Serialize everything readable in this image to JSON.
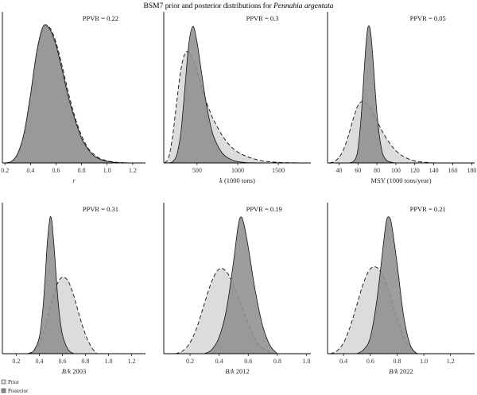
{
  "figure": {
    "title_prefix": "BSM7 prior and posterior distributions for ",
    "title_species": "Pennahia argentata",
    "legend": [
      {
        "label": "Prior",
        "color": "#dcdcdc"
      },
      {
        "label": "Posterior",
        "color": "#8c8c8c"
      }
    ]
  },
  "colors": {
    "prior_fill": "#dcdcdc",
    "posterior_fill": "#8f8f8f",
    "stroke": "#111111"
  },
  "chart_data": [
    {
      "type": "area",
      "xlabel_italic": "r",
      "xlabel_rest": "",
      "annotation": "PPVR = 0.22",
      "xlim": [
        0.18,
        1.3
      ],
      "xticks": [
        0.2,
        0.4,
        0.6,
        0.8,
        1.0,
        1.2
      ],
      "xtick_labels": [
        "0.2",
        "0.4",
        "0.6",
        "0.8",
        "1.0",
        "1.2"
      ],
      "series": [
        {
          "name": "Prior",
          "x": [
            0.2,
            0.25,
            0.3,
            0.35,
            0.4,
            0.45,
            0.5,
            0.55,
            0.6,
            0.65,
            0.7,
            0.75,
            0.8,
            0.85,
            0.9,
            0.95,
            1.0,
            1.05,
            1.1,
            1.15,
            1.2
          ],
          "density": [
            0.0,
            0.01,
            0.06,
            0.2,
            0.48,
            0.8,
            0.98,
            0.99,
            0.88,
            0.7,
            0.5,
            0.33,
            0.2,
            0.11,
            0.06,
            0.03,
            0.015,
            0.007,
            0.003,
            0.001,
            0.0
          ]
        },
        {
          "name": "Posterior",
          "x": [
            0.2,
            0.25,
            0.3,
            0.35,
            0.4,
            0.45,
            0.5,
            0.55,
            0.6,
            0.65,
            0.7,
            0.75,
            0.8,
            0.85,
            0.9,
            0.95,
            1.0,
            1.05,
            1.1,
            1.15,
            1.2
          ],
          "density": [
            0.0,
            0.01,
            0.07,
            0.22,
            0.5,
            0.82,
            1.0,
            0.98,
            0.86,
            0.67,
            0.47,
            0.31,
            0.18,
            0.1,
            0.05,
            0.025,
            0.012,
            0.005,
            0.002,
            0.001,
            0.0
          ]
        }
      ]
    },
    {
      "type": "area",
      "xlabel_italic": "k",
      "xlabel_rest": " (1000 tons)",
      "annotation": "PPVR = 0.3",
      "xlim": [
        90,
        1900
      ],
      "xticks": [
        500,
        1000,
        1500
      ],
      "xtick_labels": [
        "500",
        "1000",
        "1500"
      ],
      "series": [
        {
          "name": "Prior",
          "x": [
            100,
            150,
            200,
            250,
            300,
            350,
            400,
            450,
            500,
            550,
            600,
            650,
            700,
            800,
            900,
            1000,
            1100,
            1200,
            1300,
            1400,
            1500,
            1600,
            1700,
            1800
          ],
          "density": [
            0.0,
            0.04,
            0.2,
            0.45,
            0.68,
            0.8,
            0.81,
            0.76,
            0.67,
            0.57,
            0.47,
            0.39,
            0.32,
            0.21,
            0.13,
            0.08,
            0.05,
            0.03,
            0.015,
            0.008,
            0.004,
            0.002,
            0.001,
            0.0
          ]
        },
        {
          "name": "Posterior",
          "x": [
            100,
            150,
            200,
            250,
            300,
            350,
            400,
            450,
            500,
            550,
            600,
            650,
            700,
            800,
            900,
            1000,
            1100,
            1200,
            1300,
            1400,
            1500,
            1600,
            1700,
            1800
          ],
          "density": [
            0.0,
            0.0,
            0.01,
            0.06,
            0.22,
            0.55,
            0.88,
            1.0,
            0.88,
            0.68,
            0.48,
            0.32,
            0.2,
            0.08,
            0.03,
            0.01,
            0.003,
            0.001,
            0.0,
            0.0,
            0.0,
            0.0,
            0.0,
            0.0
          ]
        }
      ]
    },
    {
      "type": "area",
      "xlabel_italic": "",
      "xlabel_rest": "MSY (1000 tons/year)",
      "annotation": "PPVR = 0.05",
      "xlim": [
        28,
        183
      ],
      "xticks": [
        40,
        60,
        80,
        100,
        120,
        140,
        160,
        180
      ],
      "xtick_labels": [
        "40",
        "60",
        "80",
        "100",
        "120",
        "140",
        "160",
        "180"
      ],
      "series": [
        {
          "name": "Prior",
          "x": [
            30,
            35,
            40,
            45,
            50,
            55,
            60,
            65,
            70,
            75,
            80,
            85,
            90,
            95,
            100,
            105,
            110,
            115,
            120,
            125,
            130,
            135,
            140,
            150
          ],
          "density": [
            0.0,
            0.01,
            0.04,
            0.1,
            0.2,
            0.32,
            0.42,
            0.45,
            0.43,
            0.38,
            0.31,
            0.24,
            0.18,
            0.13,
            0.09,
            0.06,
            0.04,
            0.025,
            0.015,
            0.009,
            0.005,
            0.003,
            0.001,
            0.0
          ]
        },
        {
          "name": "Posterior",
          "x": [
            30,
            40,
            50,
            55,
            58,
            60,
            63,
            65,
            68,
            70,
            72,
            74,
            76,
            78,
            80,
            83,
            86,
            90,
            95,
            100,
            110
          ],
          "density": [
            0.0,
            0.0,
            0.0,
            0.01,
            0.04,
            0.1,
            0.3,
            0.5,
            0.82,
            0.97,
            1.0,
            0.92,
            0.75,
            0.55,
            0.37,
            0.18,
            0.07,
            0.02,
            0.005,
            0.0,
            0.0
          ]
        }
      ]
    },
    {
      "type": "area",
      "xlabel_italic": "B/k",
      "xlabel_rest": " 2003",
      "annotation": "PPVR = 0.31",
      "xlim": [
        0.08,
        1.32
      ],
      "xticks": [
        0.2,
        0.4,
        0.6,
        0.8,
        1.0,
        1.2
      ],
      "xtick_labels": [
        "0.2",
        "0.4",
        "0.6",
        "0.8",
        "1.0",
        "1.2"
      ],
      "series": [
        {
          "name": "Prior",
          "x": [
            0.3,
            0.35,
            0.4,
            0.45,
            0.5,
            0.55,
            0.6,
            0.65,
            0.7,
            0.75,
            0.8,
            0.85,
            0.9
          ],
          "density": [
            0.0,
            0.02,
            0.08,
            0.2,
            0.36,
            0.5,
            0.56,
            0.53,
            0.42,
            0.27,
            0.14,
            0.05,
            0.0
          ]
        },
        {
          "name": "Posterior",
          "x": [
            0.3,
            0.35,
            0.4,
            0.43,
            0.45,
            0.47,
            0.49,
            0.5,
            0.51,
            0.53,
            0.55,
            0.57,
            0.6,
            0.65,
            0.7
          ],
          "density": [
            0.0,
            0.02,
            0.12,
            0.32,
            0.55,
            0.82,
            0.98,
            1.0,
            0.96,
            0.76,
            0.52,
            0.32,
            0.14,
            0.03,
            0.0
          ]
        }
      ]
    },
    {
      "type": "area",
      "xlabel_italic": "B/k",
      "xlabel_rest": " 2012",
      "annotation": "PPVR = 0.19",
      "xlim": [
        0.02,
        1.03
      ],
      "xticks": [
        0.2,
        0.4,
        0.6,
        0.8,
        1.0
      ],
      "xtick_labels": [
        "0.2",
        "0.4",
        "0.6",
        "0.8",
        "1.0"
      ],
      "series": [
        {
          "name": "Prior",
          "x": [
            0.1,
            0.15,
            0.2,
            0.25,
            0.3,
            0.35,
            0.4,
            0.45,
            0.5,
            0.55,
            0.6,
            0.65,
            0.7,
            0.75,
            0.8
          ],
          "density": [
            0.0,
            0.02,
            0.08,
            0.2,
            0.37,
            0.53,
            0.62,
            0.6,
            0.5,
            0.36,
            0.22,
            0.1,
            0.04,
            0.01,
            0.0
          ]
        },
        {
          "name": "Posterior",
          "x": [
            0.3,
            0.35,
            0.4,
            0.45,
            0.5,
            0.53,
            0.55,
            0.57,
            0.6,
            0.65,
            0.7,
            0.75,
            0.8
          ],
          "density": [
            0.0,
            0.03,
            0.12,
            0.32,
            0.68,
            0.93,
            1.0,
            0.95,
            0.78,
            0.45,
            0.2,
            0.06,
            0.0
          ]
        }
      ]
    },
    {
      "type": "area",
      "xlabel_italic": "B/k",
      "xlabel_rest": " 2022",
      "annotation": "PPVR = 0.21",
      "xlim": [
        0.28,
        1.38
      ],
      "xticks": [
        0.4,
        0.6,
        0.8,
        1.0,
        1.2
      ],
      "xtick_labels": [
        "0.4",
        "0.6",
        "0.8",
        "1.0",
        "1.2"
      ],
      "series": [
        {
          "name": "Prior",
          "x": [
            0.3,
            0.35,
            0.4,
            0.45,
            0.5,
            0.55,
            0.6,
            0.65,
            0.7,
            0.75,
            0.8,
            0.85,
            0.9,
            0.95
          ],
          "density": [
            0.0,
            0.02,
            0.08,
            0.2,
            0.36,
            0.52,
            0.62,
            0.63,
            0.56,
            0.42,
            0.26,
            0.12,
            0.04,
            0.0
          ]
        },
        {
          "name": "Posterior",
          "x": [
            0.5,
            0.55,
            0.6,
            0.65,
            0.7,
            0.72,
            0.74,
            0.76,
            0.8,
            0.85,
            0.9,
            0.95
          ],
          "density": [
            0.0,
            0.03,
            0.12,
            0.4,
            0.82,
            0.97,
            1.0,
            0.94,
            0.66,
            0.27,
            0.06,
            0.0
          ]
        }
      ]
    }
  ]
}
